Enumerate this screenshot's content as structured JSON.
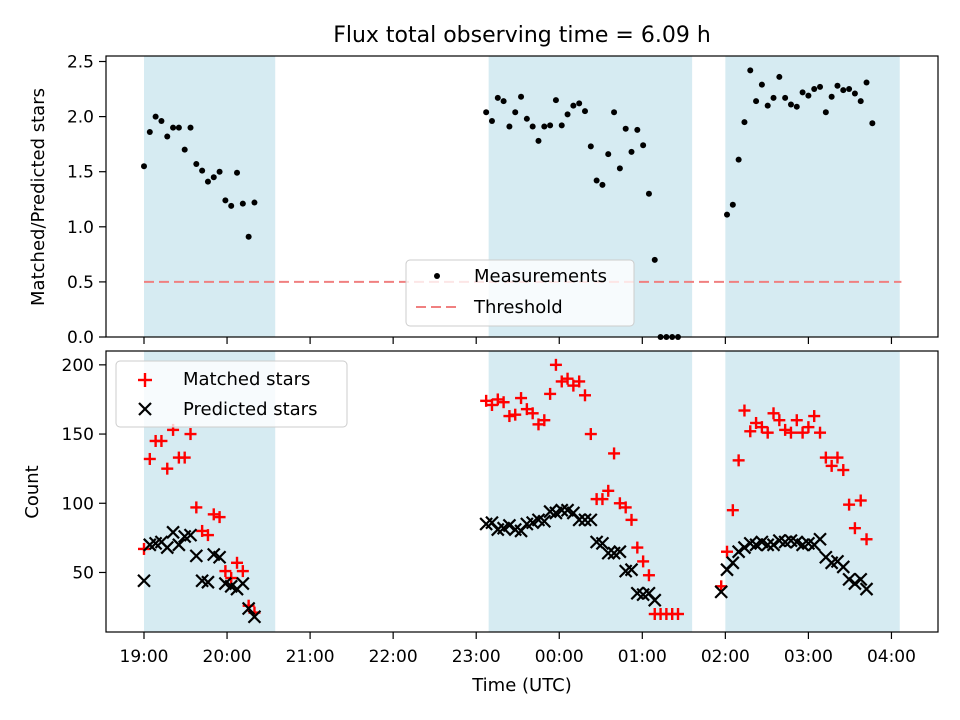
{
  "chart_data": [
    {
      "type": "scatter",
      "title": "Flux total observing time = 6.09 h",
      "xlabel": "",
      "ylabel": "Matched/Predicted stars",
      "ylim": [
        0,
        2.55
      ],
      "yticks": [
        "0.0",
        "0.5",
        "1.0",
        "1.5",
        "2.0",
        "2.5"
      ],
      "legend_position": "lower-center",
      "series": [
        {
          "name": "Measurements",
          "marker": "dot",
          "color": "#000000",
          "points": [
            [
              0.0,
              1.55
            ],
            [
              0.07,
              1.86
            ],
            [
              0.14,
              2.0
            ],
            [
              0.21,
              1.96
            ],
            [
              0.28,
              1.82
            ],
            [
              0.35,
              1.9
            ],
            [
              0.42,
              1.9
            ],
            [
              0.49,
              1.7
            ],
            [
              0.56,
              1.9
            ],
            [
              0.63,
              1.57
            ],
            [
              0.7,
              1.51
            ],
            [
              0.77,
              1.41
            ],
            [
              0.84,
              1.45
            ],
            [
              0.91,
              1.5
            ],
            [
              0.98,
              1.24
            ],
            [
              1.05,
              1.19
            ],
            [
              1.12,
              1.49
            ],
            [
              1.19,
              1.21
            ],
            [
              1.26,
              0.91
            ],
            [
              1.33,
              1.22
            ],
            [
              4.12,
              2.04
            ],
            [
              4.19,
              1.96
            ],
            [
              4.26,
              2.17
            ],
            [
              4.33,
              2.14
            ],
            [
              4.4,
              1.91
            ],
            [
              4.47,
              2.04
            ],
            [
              4.54,
              2.18
            ],
            [
              4.61,
              1.98
            ],
            [
              4.68,
              1.91
            ],
            [
              4.75,
              1.78
            ],
            [
              4.82,
              1.91
            ],
            [
              4.89,
              1.92
            ],
            [
              4.96,
              2.15
            ],
            [
              5.03,
              1.92
            ],
            [
              5.1,
              2.02
            ],
            [
              5.17,
              2.1
            ],
            [
              5.24,
              2.12
            ],
            [
              5.31,
              2.05
            ],
            [
              5.38,
              1.73
            ],
            [
              5.45,
              1.42
            ],
            [
              5.52,
              1.38
            ],
            [
              5.59,
              1.66
            ],
            [
              5.66,
              2.04
            ],
            [
              5.73,
              1.53
            ],
            [
              5.8,
              1.89
            ],
            [
              5.87,
              1.68
            ],
            [
              5.94,
              1.88
            ],
            [
              6.01,
              1.74
            ],
            [
              6.08,
              1.3
            ],
            [
              6.15,
              0.7
            ],
            [
              6.22,
              0.0
            ],
            [
              6.29,
              0.0
            ],
            [
              6.36,
              0.0
            ],
            [
              6.43,
              0.0
            ],
            [
              7.02,
              1.11
            ],
            [
              7.09,
              1.2
            ],
            [
              7.16,
              1.61
            ],
            [
              7.23,
              1.95
            ],
            [
              7.3,
              2.42
            ],
            [
              7.37,
              2.14
            ],
            [
              7.44,
              2.29
            ],
            [
              7.51,
              2.1
            ],
            [
              7.58,
              2.17
            ],
            [
              7.65,
              2.36
            ],
            [
              7.72,
              2.17
            ],
            [
              7.79,
              2.11
            ],
            [
              7.86,
              2.09
            ],
            [
              7.93,
              2.22
            ],
            [
              8.0,
              2.19
            ],
            [
              8.07,
              2.25
            ],
            [
              8.14,
              2.27
            ],
            [
              8.21,
              2.04
            ],
            [
              8.28,
              2.18
            ],
            [
              8.35,
              2.28
            ],
            [
              8.42,
              2.24
            ],
            [
              8.49,
              2.25
            ],
            [
              8.56,
              2.21
            ],
            [
              8.63,
              2.14
            ],
            [
              8.7,
              2.31
            ],
            [
              8.77,
              1.94
            ]
          ]
        },
        {
          "name": "Threshold",
          "style": "dashed",
          "color": "#f08080",
          "y": 0.5
        }
      ],
      "shaded_regions": [
        [
          0.0,
          1.58
        ],
        [
          4.15,
          6.6
        ],
        [
          7.0,
          9.1
        ]
      ]
    },
    {
      "type": "scatter",
      "title": "",
      "xlabel": "Time (UTC)",
      "ylabel": "Count",
      "ylim": [
        7,
        210
      ],
      "yticks": [
        "50",
        "100",
        "150",
        "200"
      ],
      "xticks": [
        "19:00",
        "20:00",
        "21:00",
        "22:00",
        "23:00",
        "00:00",
        "01:00",
        "02:00",
        "03:00",
        "04:00"
      ],
      "legend_position": "upper-left",
      "series": [
        {
          "name": "Matched stars",
          "marker": "plus",
          "color": "#ff0000",
          "points": [
            [
              0.0,
              67
            ],
            [
              0.07,
              132
            ],
            [
              0.14,
              145
            ],
            [
              0.21,
              145
            ],
            [
              0.28,
              125
            ],
            [
              0.35,
              153
            ],
            [
              0.42,
              133
            ],
            [
              0.49,
              133
            ],
            [
              0.56,
              150
            ],
            [
              0.63,
              97
            ],
            [
              0.7,
              80
            ],
            [
              0.77,
              77
            ],
            [
              0.84,
              92
            ],
            [
              0.91,
              90
            ],
            [
              0.98,
              51
            ],
            [
              1.05,
              46
            ],
            [
              1.12,
              57
            ],
            [
              1.19,
              51
            ],
            [
              1.26,
              26
            ],
            [
              1.33,
              21
            ],
            [
              4.12,
              174
            ],
            [
              4.19,
              171
            ],
            [
              4.26,
              175
            ],
            [
              4.33,
              173
            ],
            [
              4.4,
              163
            ],
            [
              4.47,
              164
            ],
            [
              4.54,
              176
            ],
            [
              4.61,
              168
            ],
            [
              4.68,
              165
            ],
            [
              4.75,
              157
            ],
            [
              4.82,
              160
            ],
            [
              4.89,
              179
            ],
            [
              4.96,
              200
            ],
            [
              5.03,
              188
            ],
            [
              5.1,
              190
            ],
            [
              5.17,
              185
            ],
            [
              5.24,
              188
            ],
            [
              5.31,
              178
            ],
            [
              5.38,
              150
            ],
            [
              5.45,
              103
            ],
            [
              5.52,
              103
            ],
            [
              5.59,
              109
            ],
            [
              5.66,
              136
            ],
            [
              5.73,
              100
            ],
            [
              5.8,
              97
            ],
            [
              5.87,
              88
            ],
            [
              5.94,
              68
            ],
            [
              6.01,
              58
            ],
            [
              6.08,
              48
            ],
            [
              6.15,
              20
            ],
            [
              6.22,
              20
            ],
            [
              6.29,
              20
            ],
            [
              6.36,
              20
            ],
            [
              6.43,
              20
            ],
            [
              6.95,
              40
            ],
            [
              7.02,
              65
            ],
            [
              7.09,
              95
            ],
            [
              7.16,
              131
            ],
            [
              7.23,
              167
            ],
            [
              7.3,
              152
            ],
            [
              7.37,
              158
            ],
            [
              7.44,
              155
            ],
            [
              7.51,
              151
            ],
            [
              7.58,
              165
            ],
            [
              7.65,
              160
            ],
            [
              7.72,
              153
            ],
            [
              7.79,
              151
            ],
            [
              7.86,
              160
            ],
            [
              7.93,
              151
            ],
            [
              8.0,
              155
            ],
            [
              8.07,
              163
            ],
            [
              8.14,
              151
            ],
            [
              8.21,
              133
            ],
            [
              8.28,
              127
            ],
            [
              8.35,
              133
            ],
            [
              8.42,
              124
            ],
            [
              8.49,
              99
            ],
            [
              8.56,
              82
            ],
            [
              8.63,
              102
            ],
            [
              8.7,
              74
            ]
          ]
        },
        {
          "name": "Predicted stars",
          "marker": "x",
          "color": "#000000",
          "points": [
            [
              0.0,
              44
            ],
            [
              0.07,
              70
            ],
            [
              0.14,
              71
            ],
            [
              0.21,
              72
            ],
            [
              0.28,
              68
            ],
            [
              0.35,
              79
            ],
            [
              0.42,
              70
            ],
            [
              0.49,
              76
            ],
            [
              0.56,
              77
            ],
            [
              0.63,
              62
            ],
            [
              0.7,
              44
            ],
            [
              0.77,
              43
            ],
            [
              0.84,
              63
            ],
            [
              0.91,
              61
            ],
            [
              0.98,
              42
            ],
            [
              1.05,
              40
            ],
            [
              1.12,
              38
            ],
            [
              1.19,
              42
            ],
            [
              1.26,
              24
            ],
            [
              1.33,
              18
            ],
            [
              4.12,
              85
            ],
            [
              4.19,
              86
            ],
            [
              4.26,
              81
            ],
            [
              4.33,
              82
            ],
            [
              4.4,
              84
            ],
            [
              4.47,
              81
            ],
            [
              4.54,
              80
            ],
            [
              4.61,
              85
            ],
            [
              4.68,
              86
            ],
            [
              4.75,
              88
            ],
            [
              4.82,
              87
            ],
            [
              4.89,
              94
            ],
            [
              4.96,
              93
            ],
            [
              5.03,
              95
            ],
            [
              5.1,
              95
            ],
            [
              5.17,
              93
            ],
            [
              5.24,
              88
            ],
            [
              5.31,
              88
            ],
            [
              5.38,
              88
            ],
            [
              5.45,
              72
            ],
            [
              5.52,
              71
            ],
            [
              5.59,
              64
            ],
            [
              5.66,
              64
            ],
            [
              5.73,
              65
            ],
            [
              5.8,
              51
            ],
            [
              5.87,
              52
            ],
            [
              5.94,
              35
            ],
            [
              6.01,
              34
            ],
            [
              6.08,
              35
            ],
            [
              6.15,
              30
            ],
            [
              6.95,
              36
            ],
            [
              7.02,
              52
            ],
            [
              7.09,
              57
            ],
            [
              7.16,
              65
            ],
            [
              7.23,
              68
            ],
            [
              7.3,
              71
            ],
            [
              7.37,
              70
            ],
            [
              7.44,
              72
            ],
            [
              7.51,
              70
            ],
            [
              7.58,
              70
            ],
            [
              7.65,
              73
            ],
            [
              7.72,
              72
            ],
            [
              7.79,
              73
            ],
            [
              7.86,
              72
            ],
            [
              7.93,
              70
            ],
            [
              8.0,
              71
            ],
            [
              8.07,
              70
            ],
            [
              8.14,
              74
            ],
            [
              8.21,
              61
            ],
            [
              8.28,
              57
            ],
            [
              8.35,
              58
            ],
            [
              8.42,
              54
            ],
            [
              8.49,
              45
            ],
            [
              8.56,
              42
            ],
            [
              8.63,
              45
            ],
            [
              8.7,
              38
            ]
          ]
        }
      ],
      "shaded_regions": [
        [
          0.0,
          1.58
        ],
        [
          4.15,
          6.6
        ],
        [
          7.0,
          9.1
        ]
      ]
    }
  ]
}
